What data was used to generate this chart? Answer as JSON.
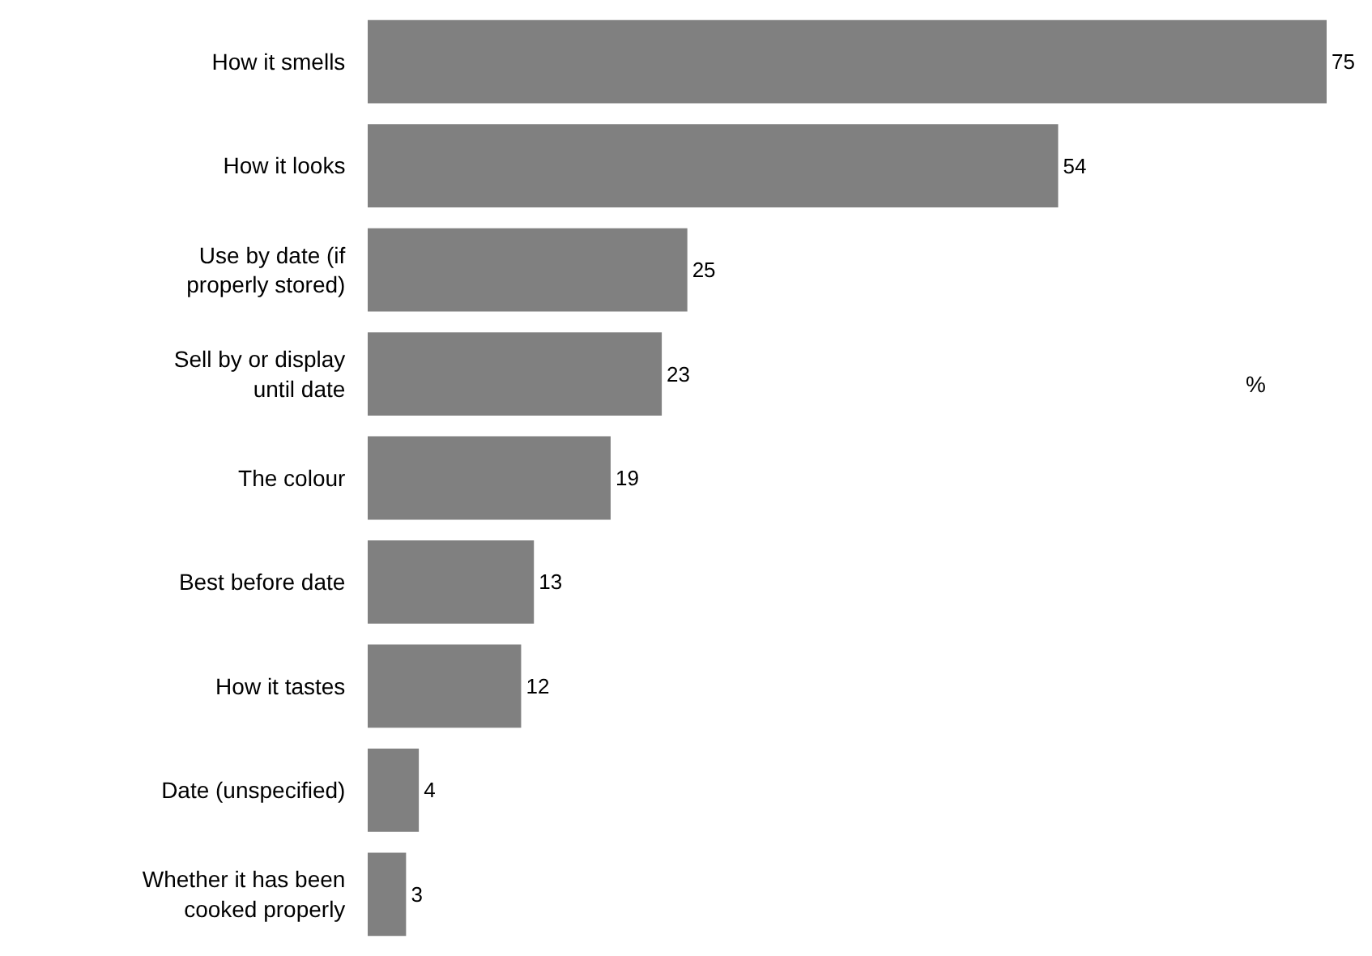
{
  "chart_data": {
    "type": "bar",
    "orientation": "horizontal",
    "categories": [
      "How it smells",
      "How it looks",
      "Use by date (if properly stored)",
      "Sell by or display until date",
      "The colour",
      "Best before date",
      "How it tastes",
      "Date (unspecified)",
      "Whether it has been cooked properly"
    ],
    "values": [
      75,
      54,
      25,
      23,
      19,
      13,
      12,
      4,
      3
    ],
    "color": "#808080",
    "data_labels": true,
    "legend": false,
    "annotations": [
      "%"
    ]
  }
}
